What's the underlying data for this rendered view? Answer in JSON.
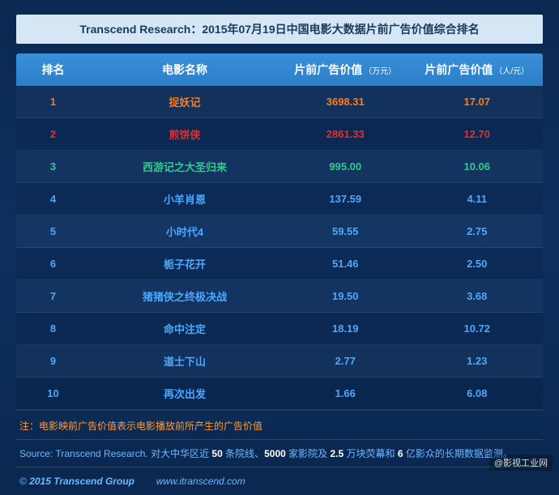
{
  "title": "Transcend Research：2015年07月19日中国电影大数据片前广告价值综合排名",
  "columns": {
    "rank": "排名",
    "name": "电影名称",
    "val1": "片前广告价值",
    "val1_unit": "（万元）",
    "val2": "片前广告价值",
    "val2_unit": "（人/元）"
  },
  "row_colors": {
    "r1": "#ff7a1a",
    "r2": "#e03030",
    "r3": "#2ecc8a",
    "default": "#4aa8ff"
  },
  "rows": [
    {
      "rank": "1",
      "name": "捉妖记",
      "val1": "3698.31",
      "val2": "17.07",
      "ck": "r1"
    },
    {
      "rank": "2",
      "name": "煎饼侠",
      "val1": "2861.33",
      "val2": "12.70",
      "ck": "r2"
    },
    {
      "rank": "3",
      "name": "西游记之大圣归来",
      "val1": "995.00",
      "val2": "10.06",
      "ck": "r3"
    },
    {
      "rank": "4",
      "name": "小羊肖恩",
      "val1": "137.59",
      "val2": "4.11",
      "ck": "default"
    },
    {
      "rank": "5",
      "name": "小时代4",
      "val1": "59.55",
      "val2": "2.75",
      "ck": "default"
    },
    {
      "rank": "6",
      "name": "栀子花开",
      "val1": "51.46",
      "val2": "2.50",
      "ck": "default"
    },
    {
      "rank": "7",
      "name": "猪猪侠之终极决战",
      "val1": "19.50",
      "val2": "3.68",
      "ck": "default"
    },
    {
      "rank": "8",
      "name": "命中注定",
      "val1": "18.19",
      "val2": "10.72",
      "ck": "default"
    },
    {
      "rank": "9",
      "name": "道士下山",
      "val1": "2.77",
      "val2": "1.23",
      "ck": "default"
    },
    {
      "rank": "10",
      "name": "再次出发",
      "val1": "1.66",
      "val2": "6.08",
      "ck": "default"
    }
  ],
  "note": "注：电影映前广告价值表示电影播放前所产生的广告价值",
  "source": {
    "prefix": "Source: Transcend Research. 对大中华区近 ",
    "n1": "50",
    "t1": " 条院线、",
    "n2": "5000",
    "t2": " 家影院及 ",
    "n3": "2.5",
    "t3": " 万块荧幕和 ",
    "n4": "6",
    "t4": " 亿影众的长期数据监测。"
  },
  "copyright_prefix": "© ",
  "copyright_year": "2015 ",
  "copyright_group": "Transcend Group",
  "copyright_url": "www.itranscend.com",
  "watermark": "@影视工业网"
}
